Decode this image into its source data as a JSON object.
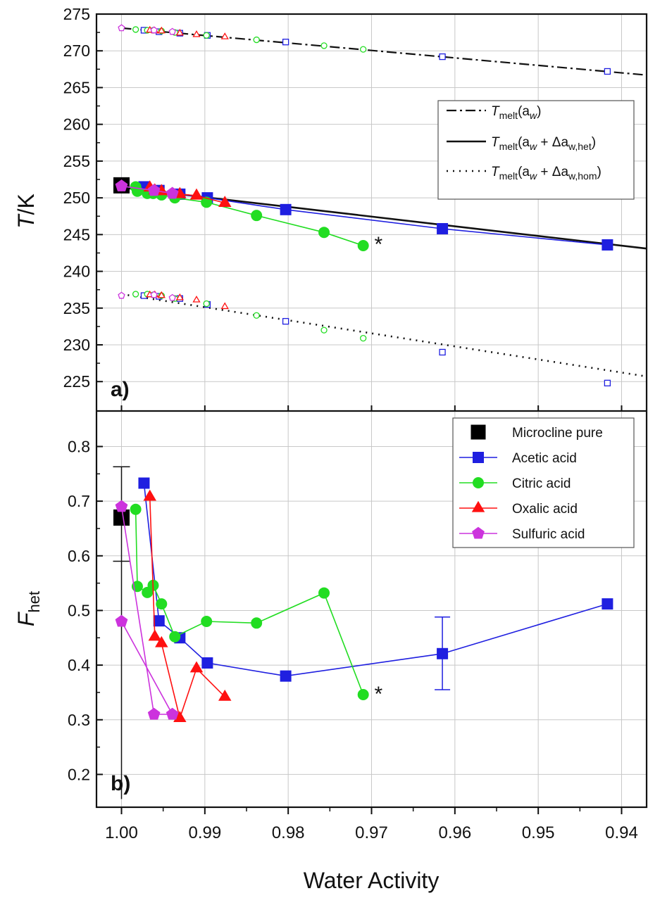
{
  "chart_data": [
    {
      "type": "scatter",
      "panel_label": "a)",
      "ylabel": "T/K",
      "xlabel": "Water Activity",
      "xlim": [
        1.003,
        0.937
      ],
      "ylim": [
        221,
        275
      ],
      "x_ticks": [
        1.0,
        0.99,
        0.98,
        0.97,
        0.96,
        0.95,
        0.94
      ],
      "x_tick_labels": [
        "1.00",
        "0.99",
        "0.98",
        "0.97",
        "0.96",
        "0.95",
        "0.94"
      ],
      "y_ticks": [
        225,
        230,
        235,
        240,
        245,
        250,
        255,
        260,
        265,
        270,
        275
      ],
      "grid": true,
      "legend_position": "right",
      "legend": [
        {
          "label_main": "T",
          "label_sub": "melt",
          "label_rest": "(a",
          "label_w": "w",
          "label_end": ")",
          "style": "dash-dot"
        },
        {
          "label_main": "T",
          "label_sub": "melt",
          "label_rest": "(a",
          "label_w": "w",
          "label_end": " + Δa",
          "label_sub2": "w,het",
          "label_close": ")",
          "style": "solid"
        },
        {
          "label_main": "T",
          "label_sub": "melt",
          "label_rest": "(a",
          "label_w": "w",
          "label_end": " + Δa",
          "label_sub2": "w,hom",
          "label_close": ")",
          "style": "dotted"
        }
      ],
      "legend_text": [
        "Tmelt(aw)",
        "Tmelt(aw + Δaw,het)",
        "Tmelt(aw + Δaw,hom)"
      ],
      "lines": [
        {
          "name": "Tmelt(aw)",
          "style": "dash-dot",
          "x": [
            1.0,
            0.937
          ],
          "y": [
            273.1,
            266.7
          ]
        },
        {
          "name": "Tmelt(aw + Δaw,het)",
          "style": "solid",
          "x": [
            1.0,
            0.937
          ],
          "y": [
            251.4,
            243.1
          ]
        },
        {
          "name": "Tmelt(aw + Δaw,hom)",
          "style": "dotted",
          "x": [
            1.0,
            0.937
          ],
          "y": [
            236.9,
            225.7
          ]
        }
      ],
      "series": [
        {
          "name": "Microcline pure",
          "color": "#000000",
          "marker": "square",
          "x": [
            1.0
          ],
          "y": [
            251.7
          ]
        },
        {
          "name": "Acetic acid",
          "color": "#1f1fe0",
          "marker": "square",
          "x": [
            0.9973,
            0.9955,
            0.993,
            0.9897,
            0.9803,
            0.9615,
            0.9417
          ],
          "y": [
            251.5,
            251.0,
            250.5,
            250.0,
            248.4,
            245.8,
            243.6
          ]
        },
        {
          "name": "Citric acid",
          "color": "#22dd22",
          "marker": "circle",
          "x": [
            0.9983,
            0.9981,
            0.9969,
            0.9962,
            0.9952,
            0.9936,
            0.9898,
            0.9838,
            0.9757,
            0.971
          ],
          "y": [
            251.5,
            250.9,
            250.6,
            250.6,
            250.4,
            250.0,
            249.4,
            247.6,
            245.3,
            243.5
          ]
        },
        {
          "name": "Oxalic acid",
          "color": "#ff1010",
          "marker": "triangle",
          "x": [
            0.9966,
            0.996,
            0.9952,
            0.993,
            0.991,
            0.9876
          ],
          "y": [
            251.4,
            251.0,
            250.9,
            250.5,
            250.3,
            249.3
          ]
        },
        {
          "name": "Sulfuric acid",
          "color": "#cc33dd",
          "marker": "pentagon",
          "x": [
            1.0,
            0.9961,
            0.9939
          ],
          "y": [
            251.6,
            251.0,
            250.6
          ]
        }
      ],
      "open_points": [
        {
          "series": "Acetic acid",
          "color": "#1f1fe0",
          "marker": "square",
          "x": [
            0.9973,
            0.9955,
            0.993,
            0.9897,
            0.9803,
            0.9615,
            0.9417
          ],
          "y_melt": [
            272.8,
            272.6,
            272.4,
            272.1,
            271.2,
            269.2,
            267.2
          ],
          "y_hom": [
            236.7,
            236.6,
            236.3,
            235.5,
            233.2,
            229.0,
            224.8
          ]
        },
        {
          "series": "Citric acid",
          "color": "#22dd22",
          "marker": "circle",
          "x": [
            0.9983,
            0.9969,
            0.9962,
            0.9952,
            0.9936,
            0.9898,
            0.9838,
            0.9757,
            0.971
          ],
          "y_melt": [
            272.9,
            272.8,
            272.8,
            272.7,
            272.5,
            272.1,
            271.5,
            270.7,
            270.2
          ],
          "y_hom": [
            236.9,
            236.9,
            236.8,
            236.7,
            236.3,
            235.6,
            234.0,
            232.0,
            230.9
          ]
        },
        {
          "series": "Oxalic acid",
          "color": "#ff1010",
          "marker": "triangle",
          "x": [
            0.9966,
            0.996,
            0.9952,
            0.993,
            0.991,
            0.9876
          ],
          "y_melt": [
            272.8,
            272.7,
            272.7,
            272.4,
            272.2,
            271.9
          ],
          "y_hom": [
            236.8,
            236.8,
            236.7,
            236.4,
            236.1,
            235.2
          ]
        },
        {
          "series": "Sulfuric acid",
          "color": "#cc33dd",
          "marker": "pentagon",
          "x": [
            1.0,
            0.9961,
            0.9939
          ],
          "y_melt": [
            273.1,
            272.8,
            272.6
          ],
          "y_hom": [
            236.7,
            236.8,
            236.4
          ]
        }
      ],
      "annotations": [
        {
          "text": "*",
          "x": 0.97,
          "y": 243.9
        }
      ]
    },
    {
      "type": "line",
      "panel_label": "b)",
      "ylabel_main": "F",
      "ylabel_sub": "het",
      "xlabel": "Water Activity",
      "xlim": [
        1.003,
        0.937
      ],
      "ylim": [
        0.14,
        0.865
      ],
      "x_ticks": [
        1.0,
        0.99,
        0.98,
        0.97,
        0.96,
        0.95,
        0.94
      ],
      "x_tick_labels": [
        "1.00",
        "0.99",
        "0.98",
        "0.97",
        "0.96",
        "0.95",
        "0.94"
      ],
      "y_ticks": [
        0.2,
        0.3,
        0.4,
        0.5,
        0.6,
        0.7,
        0.8
      ],
      "y_tick_labels": [
        "0.2",
        "0.3",
        "0.4",
        "0.5",
        "0.6",
        "0.7",
        "0.8"
      ],
      "grid": true,
      "legend_position": "top-right",
      "series": [
        {
          "name": "Microcline pure",
          "color": "#000000",
          "marker": "square",
          "x": [
            1.0
          ],
          "y": [
            0.67
          ],
          "yerr_low": [
            0.59
          ],
          "yerr_high": [
            0.763
          ],
          "extra_low": 0.155
        },
        {
          "name": "Acetic acid",
          "color": "#1f1fe0",
          "marker": "square",
          "x": [
            0.9973,
            0.9955,
            0.993,
            0.9897,
            0.9803,
            0.9615,
            0.9417
          ],
          "y": [
            0.733,
            0.481,
            0.45,
            0.404,
            0.38,
            0.421,
            0.512
          ],
          "errorbar_index": 5,
          "yerr_low": 0.355,
          "yerr_high": 0.488
        },
        {
          "name": "Citric acid",
          "color": "#22dd22",
          "marker": "circle",
          "x": [
            0.9983,
            0.9981,
            0.9969,
            0.9962,
            0.9952,
            0.9936,
            0.9898,
            0.9838,
            0.9757,
            0.971
          ],
          "y": [
            0.685,
            0.544,
            0.533,
            0.546,
            0.512,
            0.452,
            0.48,
            0.477,
            0.532,
            0.346
          ]
        },
        {
          "name": "Oxalic acid",
          "color": "#ff1010",
          "marker": "triangle",
          "x": [
            0.9966,
            0.996,
            0.9952,
            0.993,
            0.991,
            0.9876
          ],
          "y": [
            0.708,
            0.452,
            0.44,
            0.303,
            0.394,
            0.342
          ]
        },
        {
          "name": "Sulfuric acid",
          "color": "#cc33dd",
          "marker": "pentagon",
          "x": [
            1.0,
            0.9961,
            0.9939,
            1.0
          ],
          "y": [
            0.69,
            0.31,
            0.31,
            0.48
          ]
        }
      ],
      "annotations": [
        {
          "text": "*",
          "x": 0.97,
          "y": 0.35
        }
      ]
    }
  ]
}
